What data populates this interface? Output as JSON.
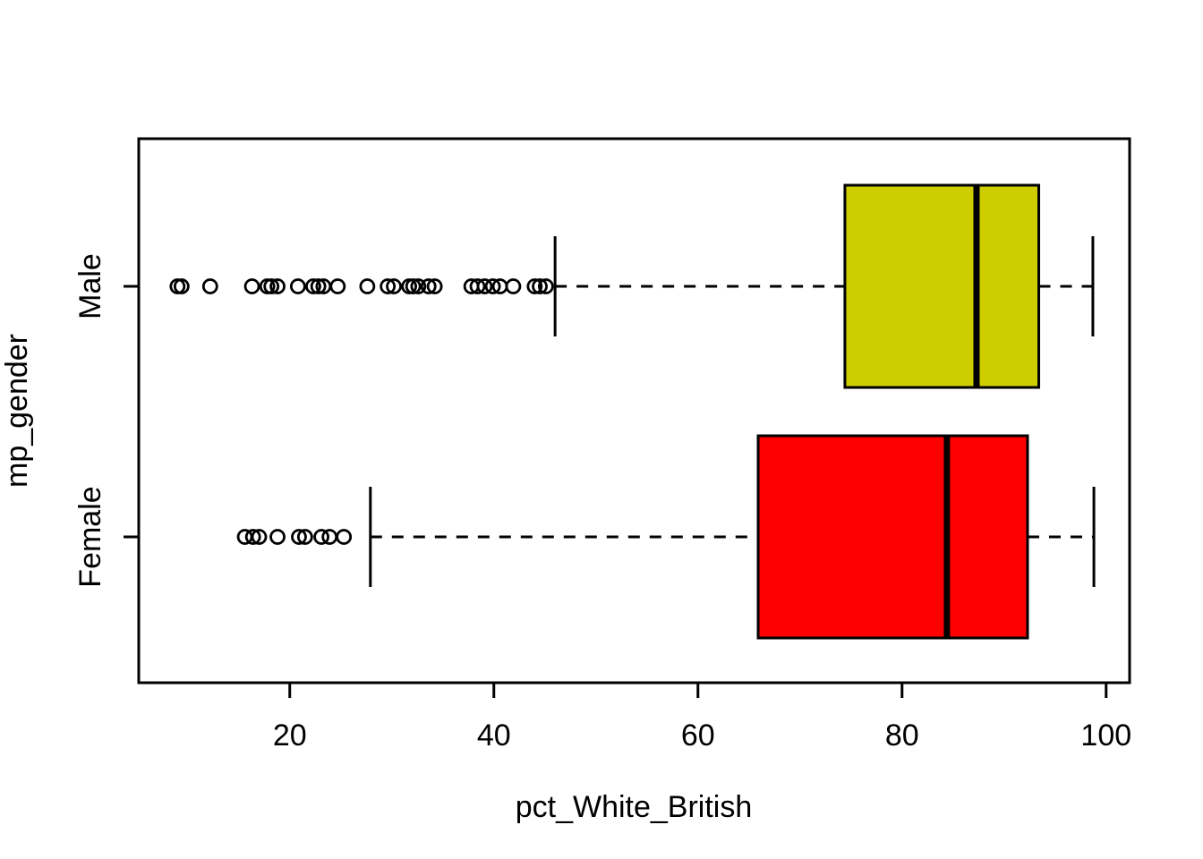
{
  "chart_data": {
    "type": "boxplot",
    "orientation": "horizontal",
    "title": "",
    "xlabel": "pct_White_British",
    "ylabel": "mp_gender",
    "xlim": [
      5.2,
      102.3
    ],
    "x_ticks": [
      20,
      40,
      60,
      80,
      100
    ],
    "grid": false,
    "legend": "none",
    "groups": [
      {
        "label": "Male",
        "color": "#cdcd00",
        "stats": {
          "lower_whisker": 46.0,
          "q1": 74.4,
          "median": 87.3,
          "q3": 93.4,
          "upper_whisker": 98.7
        },
        "outliers": [
          9.0,
          9.4,
          12.2,
          16.3,
          17.8,
          18.2,
          18.8,
          20.8,
          22.3,
          22.8,
          23.3,
          24.7,
          27.6,
          29.6,
          30.2,
          31.7,
          32.1,
          32.6,
          33.6,
          34.2,
          37.8,
          38.4,
          39.1,
          39.9,
          40.6,
          41.9,
          44.0,
          44.5,
          45.1
        ]
      },
      {
        "label": "Female",
        "color": "#ff0000",
        "stats": {
          "lower_whisker": 27.9,
          "q1": 65.9,
          "median": 84.4,
          "q3": 92.3,
          "upper_whisker": 98.8
        },
        "outliers": [
          15.6,
          16.4,
          17.0,
          18.8,
          20.9,
          21.5,
          23.1,
          23.9,
          25.3
        ]
      }
    ]
  }
}
